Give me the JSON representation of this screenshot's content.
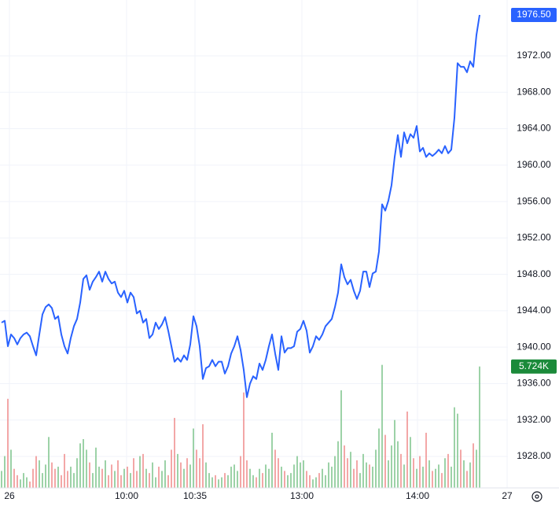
{
  "chart_data": {
    "type": "line",
    "series": [
      {
        "color": "#2962ff",
        "last_label": "1976.50",
        "values": [
          1942.7,
          1942.9,
          1940.1,
          1941.4,
          1941.0,
          1940.3,
          1941.0,
          1941.4,
          1941.6,
          1941.2,
          1940.1,
          1939.1,
          1941.4,
          1943.6,
          1944.4,
          1944.7,
          1944.3,
          1943.1,
          1943.4,
          1941.4,
          1940.1,
          1939.3,
          1941.0,
          1942.3,
          1943.1,
          1944.9,
          1947.5,
          1947.9,
          1946.3,
          1947.2,
          1947.7,
          1948.3,
          1947.2,
          1948.3,
          1947.5,
          1947.0,
          1947.2,
          1946.0,
          1945.5,
          1946.2,
          1944.9,
          1946.0,
          1945.5,
          1943.7,
          1944.0,
          1942.7,
          1943.1,
          1941.0,
          1941.4,
          1942.7,
          1942.0,
          1942.5,
          1943.3,
          1941.8,
          1940.1,
          1938.4,
          1938.8,
          1938.4,
          1939.1,
          1938.6,
          1940.3,
          1943.4,
          1942.3,
          1940.1,
          1936.5,
          1937.7,
          1937.9,
          1938.6,
          1937.9,
          1938.4,
          1938.4,
          1937.1,
          1937.9,
          1939.3,
          1940.1,
          1941.2,
          1939.7,
          1937.5,
          1934.5,
          1936.0,
          1936.8,
          1936.5,
          1938.2,
          1937.5,
          1938.6,
          1940.1,
          1941.4,
          1939.3,
          1937.5,
          1941.2,
          1939.4,
          1939.9,
          1939.9,
          1940.1,
          1941.7,
          1942.0,
          1942.9,
          1941.8,
          1939.4,
          1940.1,
          1941.2,
          1940.8,
          1941.4,
          1942.3,
          1942.7,
          1943.1,
          1944.4,
          1946.0,
          1949.1,
          1947.7,
          1946.9,
          1947.4,
          1946.2,
          1945.3,
          1946.2,
          1948.3,
          1948.3,
          1946.6,
          1948.1,
          1948.3,
          1950.5,
          1955.7,
          1955.0,
          1956.1,
          1957.8,
          1960.9,
          1963.3,
          1960.9,
          1963.6,
          1962.4,
          1963.4,
          1963.0,
          1964.3,
          1961.5,
          1961.9,
          1960.9,
          1961.3,
          1961.0,
          1961.3,
          1961.7,
          1961.3,
          1962.1,
          1961.3,
          1961.7,
          1965.2,
          1971.2,
          1970.8,
          1970.8,
          1970.2,
          1971.4,
          1970.8,
          1974.3,
          1976.5
        ]
      }
    ],
    "volume": {
      "up_color": "#7cc48a",
      "down_color": "#ef8a8a",
      "badge_color": "#1b8a3a",
      "last_label": "5.724K",
      "ylim": [
        0,
        23000
      ],
      "values": [
        800,
        1500,
        4200,
        1800,
        900,
        600,
        400,
        700,
        500,
        300,
        900,
        1500,
        1300,
        700,
        1100,
        2400,
        1200,
        900,
        1000,
        600,
        1600,
        800,
        1000,
        700,
        1400,
        2100,
        2300,
        1800,
        1200,
        700,
        1900,
        1000,
        900,
        1300,
        600,
        1100,
        800,
        1300,
        600,
        900,
        1000,
        700,
        1400,
        800,
        1500,
        1600,
        900,
        700,
        1200,
        500,
        1000,
        800,
        1300,
        600,
        1800,
        3300,
        1600,
        1200,
        900,
        1400,
        1100,
        2800,
        1800,
        1400,
        3000,
        1200,
        700,
        500,
        600,
        400,
        500,
        700,
        600,
        1000,
        1100,
        800,
        1500,
        4500,
        1300,
        900,
        600,
        500,
        900,
        700,
        1100,
        900,
        2600,
        1800,
        1400,
        1000,
        800,
        600,
        700,
        1100,
        1500,
        1200,
        1300,
        800,
        600,
        400,
        500,
        700,
        900,
        600,
        1200,
        1000,
        1500,
        2200,
        4600,
        2000,
        1400,
        1700,
        900,
        1300,
        700,
        1600,
        1200,
        1100,
        1000,
        1800,
        2800,
        5800,
        2500,
        1300,
        2000,
        3200,
        2200,
        1600,
        1100,
        3600,
        2400,
        1400,
        900,
        1500,
        1000,
        2600,
        1300,
        800,
        900,
        1100,
        700,
        1400,
        1600,
        1000,
        3800,
        3500,
        1800,
        1300,
        800,
        1200,
        2100,
        1800,
        5724
      ]
    },
    "xlim": [
      -0.5,
      161
    ],
    "xticks": [
      {
        "value": 2.5,
        "label": "26"
      },
      {
        "value": 39.75,
        "label": "10:00"
      },
      {
        "value": 61.5,
        "label": "10:35"
      },
      {
        "value": 95.5,
        "label": "13:00"
      },
      {
        "value": 132.25,
        "label": "14:00"
      },
      {
        "value": 160.75,
        "label": "27"
      }
    ],
    "ylim": [
      1924.54,
      1978.14
    ],
    "yticks": [
      {
        "value": 1928,
        "label": "1928.00"
      },
      {
        "value": 1932,
        "label": "1932.00"
      },
      {
        "value": 1936,
        "label": "1936.00"
      },
      {
        "value": 1940,
        "label": "1940.00"
      },
      {
        "value": 1944,
        "label": "1944.00"
      },
      {
        "value": 1948,
        "label": "1948.00"
      },
      {
        "value": 1952,
        "label": "1952.00"
      },
      {
        "value": 1956,
        "label": "1956.00"
      },
      {
        "value": 1960,
        "label": "1960.00"
      },
      {
        "value": 1964,
        "label": "1964.00"
      },
      {
        "value": 1968,
        "label": "1968.00"
      },
      {
        "value": 1972,
        "label": "1972.00"
      }
    ],
    "grid": true
  }
}
